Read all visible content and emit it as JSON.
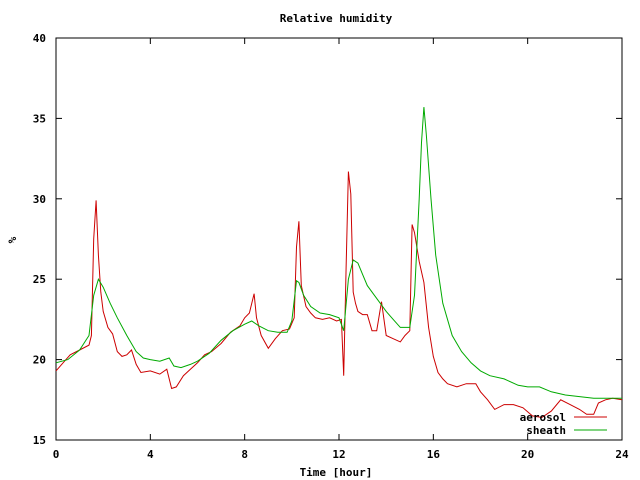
{
  "chart_data": {
    "type": "line",
    "title": "Relative humidity",
    "xlabel": "Time [hour]",
    "ylabel": "%",
    "xlim": [
      0,
      24
    ],
    "ylim": [
      15,
      40
    ],
    "x_ticks": [
      "0",
      "4",
      "8",
      "12",
      "16",
      "20",
      "24"
    ],
    "y_ticks": [
      "15",
      "20",
      "25",
      "30",
      "35",
      "40"
    ],
    "grid": false,
    "legend_position": "bottom-right",
    "series": [
      {
        "name": "aerosol",
        "color": "#cc0000",
        "x": [
          0,
          0.3,
          0.6,
          1.0,
          1.4,
          1.5,
          1.6,
          1.7,
          1.8,
          1.9,
          2.0,
          2.2,
          2.4,
          2.6,
          2.8,
          3.0,
          3.2,
          3.4,
          3.6,
          4.0,
          4.4,
          4.7,
          4.9,
          5.1,
          5.4,
          5.7,
          6.0,
          6.3,
          6.6,
          7.0,
          7.4,
          7.8,
          8.0,
          8.2,
          8.4,
          8.5,
          8.7,
          9.0,
          9.3,
          9.6,
          9.9,
          10.1,
          10.2,
          10.3,
          10.4,
          10.6,
          10.8,
          11.0,
          11.3,
          11.6,
          11.9,
          12.1,
          12.2,
          12.3,
          12.4,
          12.5,
          12.6,
          12.7,
          12.8,
          13.0,
          13.2,
          13.4,
          13.6,
          13.8,
          14.0,
          14.3,
          14.6,
          14.8,
          15.0,
          15.1,
          15.2,
          15.4,
          15.6,
          15.8,
          16.0,
          16.2,
          16.4,
          16.6,
          17.0,
          17.4,
          17.8,
          18.0,
          18.3,
          18.6,
          19.0,
          19.4,
          19.8,
          20.2,
          20.6,
          21.0,
          21.4,
          21.8,
          22.2,
          22.5,
          22.8,
          23.0,
          23.3,
          23.6,
          24.0
        ],
        "values": [
          19.3,
          19.8,
          20.3,
          20.6,
          20.9,
          21.5,
          27.5,
          29.9,
          26.5,
          24.2,
          23.0,
          22.0,
          21.6,
          20.5,
          20.2,
          20.3,
          20.6,
          19.7,
          19.2,
          19.3,
          19.1,
          19.4,
          18.2,
          18.3,
          19.0,
          19.4,
          19.8,
          20.3,
          20.5,
          21.0,
          21.7,
          22.1,
          22.6,
          22.9,
          24.1,
          22.6,
          21.5,
          20.7,
          21.3,
          21.8,
          21.9,
          22.6,
          27.0,
          28.6,
          24.6,
          23.3,
          22.9,
          22.6,
          22.5,
          22.6,
          22.4,
          22.5,
          19.0,
          25.7,
          31.7,
          30.3,
          24.2,
          23.5,
          23.0,
          22.8,
          22.8,
          21.8,
          21.8,
          23.6,
          21.5,
          21.3,
          21.1,
          21.5,
          21.8,
          28.4,
          27.9,
          26.1,
          24.8,
          22.0,
          20.2,
          19.2,
          18.8,
          18.5,
          18.3,
          18.5,
          18.5,
          18.0,
          17.5,
          16.9,
          17.2,
          17.2,
          17.0,
          16.5,
          16.4,
          16.8,
          17.5,
          17.2,
          16.9,
          16.6,
          16.6,
          17.3,
          17.5,
          17.6,
          17.5
        ]
      },
      {
        "name": "sheath",
        "color": "#00aa00",
        "x": [
          0,
          0.5,
          1.0,
          1.4,
          1.6,
          1.8,
          2.0,
          2.3,
          2.6,
          3.0,
          3.4,
          3.7,
          4.0,
          4.4,
          4.8,
          5.0,
          5.3,
          5.7,
          6.0,
          6.5,
          7.0,
          7.5,
          8.0,
          8.3,
          8.6,
          9.0,
          9.4,
          9.8,
          10.0,
          10.2,
          10.3,
          10.5,
          10.8,
          11.2,
          11.6,
          12.0,
          12.2,
          12.4,
          12.6,
          12.8,
          13.0,
          13.2,
          13.5,
          13.7,
          14.0,
          14.3,
          14.6,
          15.0,
          15.2,
          15.4,
          15.5,
          15.6,
          15.7,
          15.9,
          16.1,
          16.4,
          16.8,
          17.2,
          17.6,
          18.0,
          18.4,
          19.0,
          19.6,
          20.0,
          20.5,
          21.0,
          21.6,
          22.2,
          22.8,
          23.4,
          24.0
        ],
        "values": [
          19.8,
          20.0,
          20.6,
          21.5,
          24.0,
          25.0,
          24.5,
          23.5,
          22.6,
          21.5,
          20.5,
          20.1,
          20.0,
          19.9,
          20.1,
          19.6,
          19.5,
          19.7,
          19.9,
          20.4,
          21.2,
          21.8,
          22.2,
          22.4,
          22.1,
          21.8,
          21.7,
          21.7,
          22.4,
          24.9,
          24.8,
          24.0,
          23.3,
          22.9,
          22.8,
          22.6,
          21.8,
          25.0,
          26.2,
          26.0,
          25.3,
          24.6,
          24.0,
          23.6,
          23.0,
          22.5,
          22.0,
          22.0,
          24.0,
          30.0,
          33.5,
          35.7,
          34.0,
          30.0,
          26.5,
          23.5,
          21.5,
          20.5,
          19.8,
          19.3,
          19.0,
          18.8,
          18.4,
          18.3,
          18.3,
          18.0,
          17.8,
          17.7,
          17.6,
          17.6,
          17.6
        ]
      }
    ]
  }
}
